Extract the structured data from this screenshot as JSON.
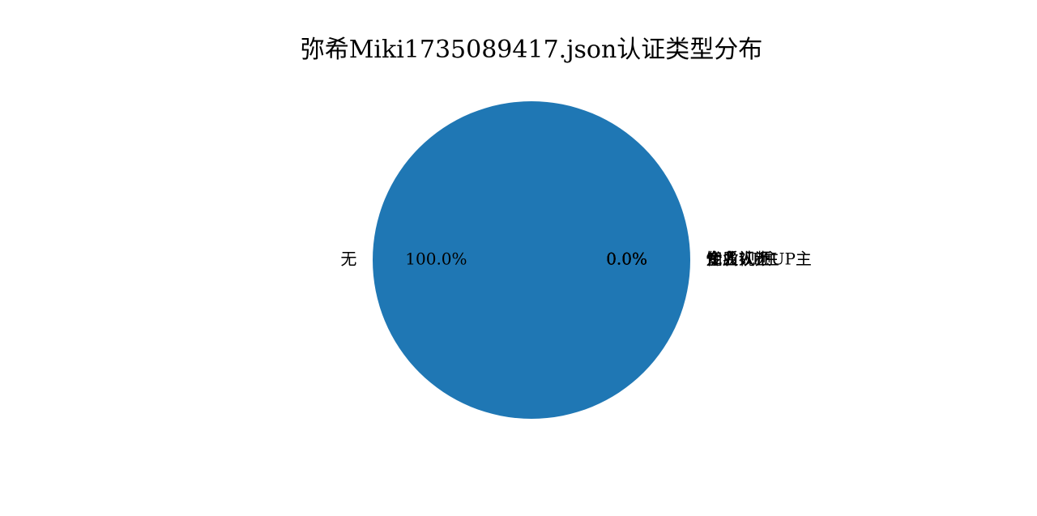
{
  "chart_data": {
    "type": "pie",
    "title": "弥希Miki1735089417.json认证类型分布",
    "slices": [
      {
        "label": "无",
        "value": 100.0,
        "pct_label": "100.0%",
        "color": "#1f77b4"
      },
      {
        "label": "优质视频UP主",
        "value": 0.0,
        "pct_label": "0.0%",
        "color": "#ff7f0e"
      },
      {
        "label": "知名UP主",
        "value": 0.0,
        "pct_label": "0.0%",
        "color": "#2ca02c"
      },
      {
        "label": "企业认证",
        "value": 0.0,
        "pct_label": "0.0%",
        "color": "#d62728"
      },
      {
        "label": "个人认证",
        "value": 0.0,
        "pct_label": "0.0%",
        "color": "#9467bd"
      },
      {
        "label": "专业人士",
        "value": 0.0,
        "pct_label": "0.0%",
        "color": "#8c564b"
      }
    ],
    "legend": "none"
  }
}
